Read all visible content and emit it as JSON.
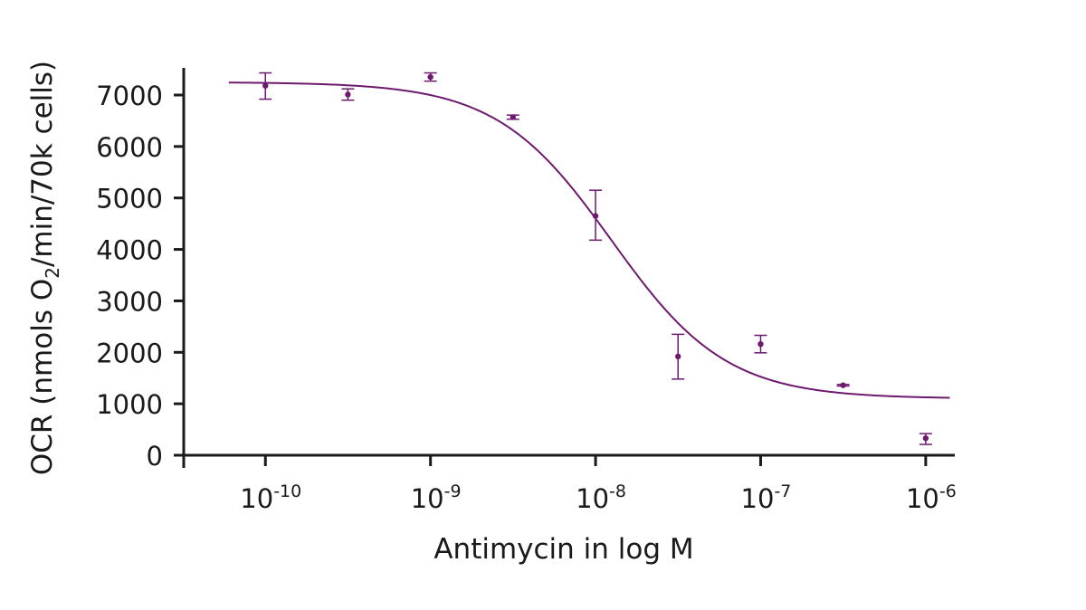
{
  "chart_data": {
    "type": "scatter",
    "xlabel": "Antimycin in log M",
    "ylabel": "OCR (nmols O2/min/70k cells)",
    "ylabel_parts": {
      "before": "OCR (nmols O",
      "sub": "2",
      "after": "/min/70k cells)"
    },
    "x_scale": "log",
    "xlim": [
      3.2e-11,
      1.5e-06
    ],
    "ylim": [
      -100,
      7500
    ],
    "x_ticks": [
      {
        "value": 1e-10,
        "base": "10",
        "exp": "-10"
      },
      {
        "value": 1e-09,
        "base": "10",
        "exp": "-9"
      },
      {
        "value": 1e-08,
        "base": "10",
        "exp": "-8"
      },
      {
        "value": 1e-07,
        "base": "10",
        "exp": "-7"
      },
      {
        "value": 1e-06,
        "base": "10",
        "exp": "-6"
      }
    ],
    "y_ticks": [
      {
        "value": 0,
        "label": "0"
      },
      {
        "value": 1000,
        "label": "1000"
      },
      {
        "value": 2000,
        "label": "2000"
      },
      {
        "value": 3000,
        "label": "3000"
      },
      {
        "value": 4000,
        "label": "4000"
      },
      {
        "value": 5000,
        "label": "5000"
      },
      {
        "value": 6000,
        "label": "6000"
      },
      {
        "value": 7000,
        "label": "7000"
      }
    ],
    "grid": false,
    "legend": "none",
    "color": "#6d1a6e",
    "points": [
      {
        "x": 1e-10,
        "y": 7180,
        "err_low": 6920,
        "err_high": 7430
      },
      {
        "x": 3.16e-10,
        "y": 7010,
        "err_low": 6900,
        "err_high": 7120
      },
      {
        "x": 1e-09,
        "y": 7350,
        "err_low": 7270,
        "err_high": 7430
      },
      {
        "x": 3.16e-09,
        "y": 6570,
        "err_low": 6530,
        "err_high": 6610
      },
      {
        "x": 1e-08,
        "y": 4650,
        "err_low": 4180,
        "err_high": 5150
      },
      {
        "x": 3.16e-08,
        "y": 1920,
        "err_low": 1480,
        "err_high": 2350
      },
      {
        "x": 1e-07,
        "y": 2160,
        "err_low": 1990,
        "err_high": 2330
      },
      {
        "x": 3.16e-07,
        "y": 1360,
        "err_low": 1345,
        "err_high": 1375
      },
      {
        "x": 1e-06,
        "y": 330,
        "err_low": 210,
        "err_high": 420
      }
    ],
    "fit_curve": {
      "model": "four-parameter logistic",
      "top": 7250,
      "bottom": 1100,
      "ec50": 1.25e-08,
      "hill_slope": 1.25,
      "x_range": [
        6e-11,
        1.4e-06
      ]
    }
  }
}
